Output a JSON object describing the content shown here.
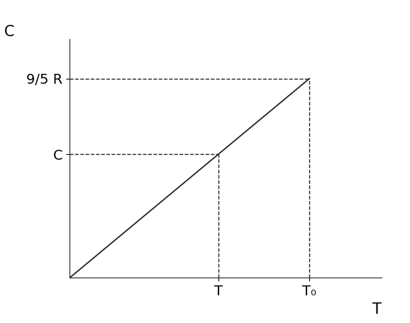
{
  "chart_data": {
    "type": "line",
    "x_label": "T",
    "y_label": "C",
    "x": [
      0,
      0.62,
      1.0
    ],
    "values": [
      0,
      0.62,
      1.0
    ],
    "color": "#222222",
    "line_style": "solid",
    "guides": {
      "x": [
        0.62,
        1.0
      ],
      "y": [
        0.62,
        1.0
      ]
    },
    "xlim": [
      0,
      1.3
    ],
    "ylim": [
      0,
      1.2
    ],
    "xticks": [
      {
        "value": 0.62,
        "label": "T"
      },
      {
        "value": 1.0,
        "label": "T₀"
      }
    ],
    "yticks": [
      {
        "value": 0.62,
        "label": "C"
      },
      {
        "value": 1.0,
        "label": "9/5 R"
      }
    ],
    "grid": false
  }
}
